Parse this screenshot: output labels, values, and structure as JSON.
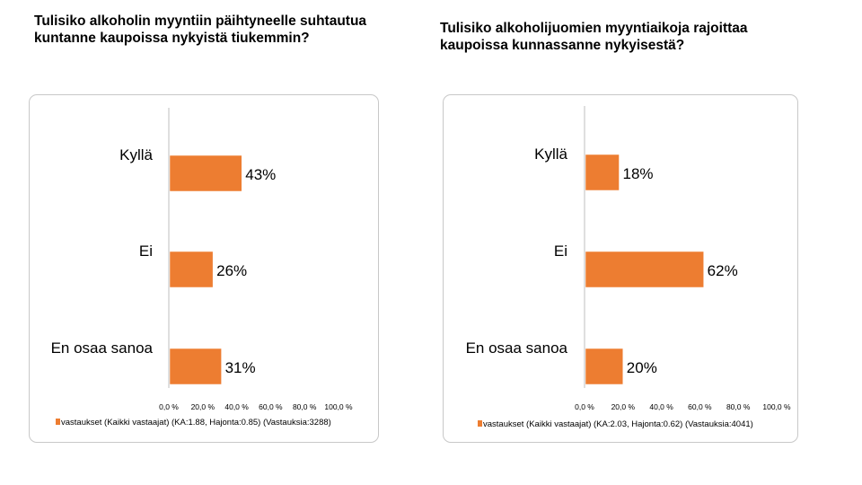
{
  "chart_data": [
    {
      "type": "bar",
      "orientation": "horizontal",
      "title": "Tulisiko alkoholin myyntiin päihtyneelle suhtautua kuntanne kaupoissa nykyistä tiukemmin?",
      "categories": [
        "Kyllä",
        "Ei",
        "En osaa sanoa"
      ],
      "series": [
        {
          "name": "vastaukset (Kaikki vastaajat) (KA:1.88, Hajonta:0.85) (Vastauksia:3288)",
          "values": [
            43,
            26,
            31
          ],
          "value_labels": [
            "43%",
            "26%",
            "31%"
          ],
          "color": "#ed7d31"
        }
      ],
      "xlim": [
        0,
        100
      ],
      "x_ticks": [
        "0,0 %",
        "20,0 %",
        "40,0 %",
        "60,0 %",
        "80,0 %",
        "100,0 %"
      ],
      "grid": false,
      "legend_position": "bottom"
    },
    {
      "type": "bar",
      "orientation": "horizontal",
      "title": "Tulisiko alkoholijuomien myyntiaikoja rajoittaa kaupoissa kunnassanne nykyisestä?",
      "categories": [
        "Kyllä",
        "Ei",
        "En osaa sanoa"
      ],
      "series": [
        {
          "name": "vastaukset (Kaikki vastaajat) (KA:2.03, Hajonta:0.62) (Vastauksia:4041)",
          "values": [
            18,
            62,
            20
          ],
          "value_labels": [
            "18%",
            "62%",
            "20%"
          ],
          "color": "#ed7d31"
        }
      ],
      "xlim": [
        0,
        100
      ],
      "x_ticks": [
        "0,0 %",
        "20,0 %",
        "40,0 %",
        "60,0 %",
        "80,0 %",
        "100,0 %"
      ],
      "grid": false,
      "legend_position": "bottom"
    }
  ]
}
